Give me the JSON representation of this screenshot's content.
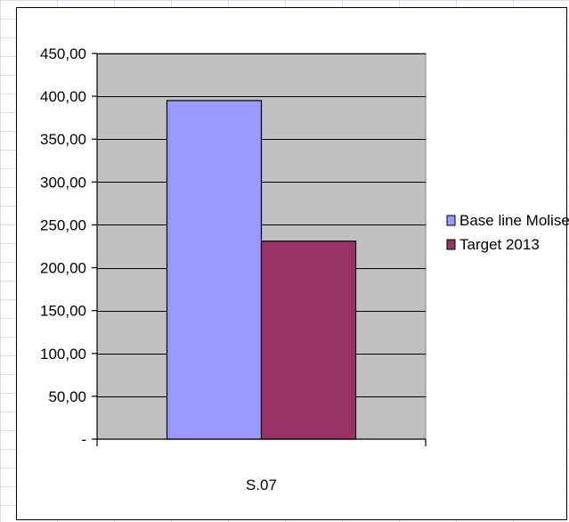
{
  "chart_data": {
    "type": "bar",
    "title": "",
    "xlabel": "",
    "ylabel": "",
    "categories": [
      "S.07"
    ],
    "series": [
      {
        "name": "Base line Molise",
        "values": [
          395
        ],
        "color": "#9999FF"
      },
      {
        "name": "Target 2013",
        "values": [
          231
        ],
        "color": "#993366"
      }
    ],
    "ylim": [
      0,
      450
    ],
    "yticks": [
      {
        "value": 0,
        "label": "-"
      },
      {
        "value": 50,
        "label": "50,00"
      },
      {
        "value": 100,
        "label": "100,00"
      },
      {
        "value": 150,
        "label": "150,00"
      },
      {
        "value": 200,
        "label": "200,00"
      },
      {
        "value": 250,
        "label": "250,00"
      },
      {
        "value": 300,
        "label": "300,00"
      },
      {
        "value": 350,
        "label": "350,00"
      },
      {
        "value": 400,
        "label": "400,00"
      },
      {
        "value": 450,
        "label": "450,00"
      }
    ],
    "grid": true,
    "plot_background": "#C0C0C0",
    "legend_position": "right"
  }
}
